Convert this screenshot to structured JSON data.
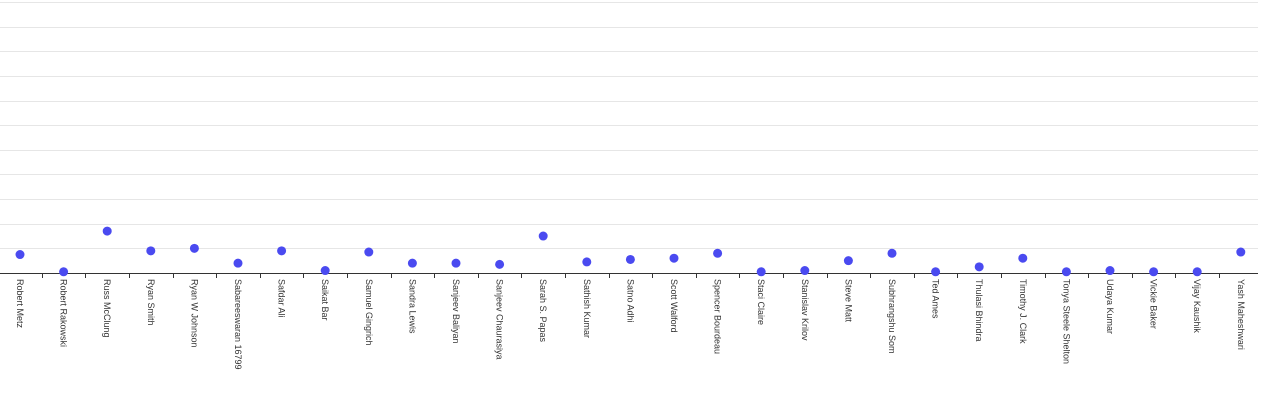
{
  "chart_data": {
    "type": "scatter",
    "title": "",
    "xlabel": "",
    "ylabel": "",
    "grid": true,
    "ylim": [
      0,
      11
    ],
    "point_color": "#4a4af0",
    "categories": [
      "Robert Metz",
      "Robert Rakowski",
      "Russ McClung",
      "Ryan Smith",
      "Ryan W Johnson",
      "Sabareeswaran 16799",
      "Safdar Ali",
      "Saikat Bar",
      "Samuel Gingrich",
      "Sandra Lewis",
      "Sanjeev Baliyan",
      "Sanjeev Chaurasiya",
      "Sarah S. Papas",
      "Sathish Kumar",
      "Satno Adhi",
      "Scott Walford",
      "Spencer Bourdeau",
      "Staci Claire",
      "Stanislav Krilov",
      "Steve Matt",
      "Subhrangshu Som",
      "Ted Ames",
      "Thulasi Bhindra",
      "Timothy J. Clark",
      "Tonya Steele Shelton",
      "Udaya Kumar",
      "Vickie Baker",
      "Vijay Kaushik",
      "Yash Maheshwari"
    ],
    "values": [
      0.75,
      0.05,
      1.7,
      0.9,
      1.0,
      0.4,
      0.9,
      0.1,
      0.85,
      0.4,
      0.4,
      0.35,
      1.5,
      0.45,
      0.55,
      0.6,
      0.8,
      0.05,
      0.1,
      0.5,
      0.8,
      0.05,
      0.25,
      0.6,
      0.05,
      0.1,
      0.05,
      0.05,
      0.85
    ]
  }
}
